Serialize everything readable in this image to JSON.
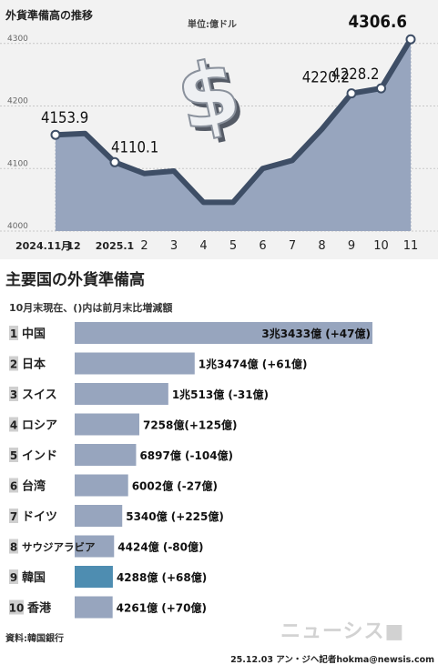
{
  "chart_data": [
    {
      "type": "area",
      "title": "外貨準備高の推移",
      "unit_label": "単位:億ドル",
      "categories": [
        "2024.11月",
        "12",
        "2025.1",
        "2",
        "3",
        "4",
        "5",
        "6",
        "7",
        "8",
        "9",
        "10",
        "11"
      ],
      "x_tick_labels": [
        "2024.11月",
        "12",
        "2025.1",
        "2",
        "3",
        "4",
        "5",
        "6",
        "7",
        "8",
        "9",
        "10",
        "11"
      ],
      "values": [
        4153.9,
        4156,
        4110.1,
        4092,
        4096,
        4046,
        4046,
        4100,
        4113,
        4163,
        4220.2,
        4228.2,
        4306.6
      ],
      "data_labels": [
        {
          "index": 0,
          "text": "4153.9"
        },
        {
          "index": 2,
          "text": "4110.1"
        },
        {
          "index": 10,
          "text": "4220.2"
        },
        {
          "index": 11,
          "text": "4228.2"
        },
        {
          "index": 12,
          "text": "4306.6"
        }
      ],
      "ylim": [
        4000,
        4330
      ],
      "y_ticks": [
        4000,
        4100,
        4200,
        4300
      ],
      "colors": {
        "area": "#97a5be",
        "line": "#3e4e66",
        "grid": "#c8c8c8",
        "marker_fill": "#ffffff"
      },
      "decoration_icon": "dollar-sign-icon"
    },
    {
      "type": "bar",
      "title": "主要国の外貨準備高",
      "subtitle": "10月末現在、()内は前月末比増減額",
      "categories": [
        "中国",
        "日本",
        "スイス",
        "ロシア",
        "インド",
        "台湾",
        "ドイツ",
        "サウジアラビア",
        "韓国",
        "香港"
      ],
      "ranks": [
        "1",
        "2",
        "3",
        "4",
        "5",
        "6",
        "7",
        "8",
        "9",
        "10"
      ],
      "values": [
        33433,
        13474,
        10513,
        7258,
        6897,
        6002,
        5340,
        4424,
        4288,
        4261
      ],
      "value_labels": [
        "3兆3433億 (+47億)",
        "1兆3474億 (+61億)",
        "1兆513億 (-31億)",
        "7258億(+125億)",
        "6897億 (-104億)",
        "6002億 (-27億)",
        "5340億 (+225億)",
        "4424億 (-80億)",
        "4288億 (+68億)",
        "4261億 (+70億)"
      ],
      "highlight_index": 8,
      "colors": {
        "bar": "#97a5be",
        "highlight": "#4e8db1",
        "rank_box": "#cfcfcf"
      }
    }
  ],
  "footer": {
    "source": "資料:韓国銀行",
    "credit": "25.12.03 アン・ジヘ記者hokma@newsis.com",
    "watermark": "ニューシス■"
  }
}
